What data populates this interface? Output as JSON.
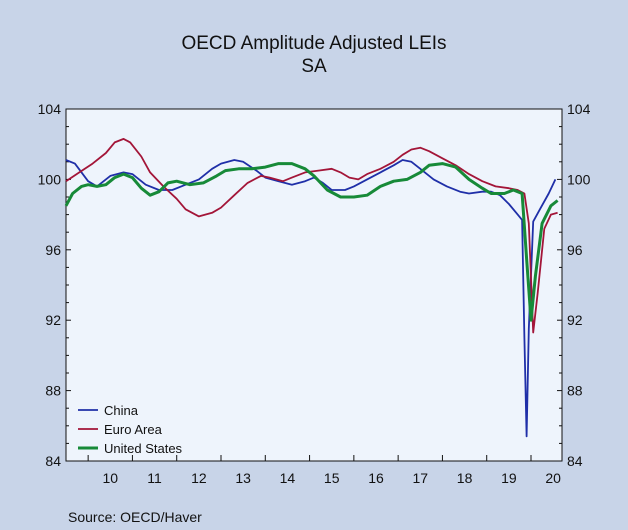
{
  "chart_data": {
    "type": "line",
    "title": "OECD Amplitude Adjusted LEIs",
    "subtitle": "SA",
    "source": "Source:  OECD/Haver",
    "x_labels": [
      "10",
      "11",
      "12",
      "13",
      "14",
      "15",
      "16",
      "17",
      "18",
      "19",
      "20"
    ],
    "xlim": [
      2009.5,
      2020.7
    ],
    "ylim": [
      84,
      104
    ],
    "yticks": [
      "84",
      "88",
      "92",
      "96",
      "100",
      "104"
    ],
    "left_axis_ticks": [
      "84",
      "88",
      "92",
      "96",
      "100",
      "104"
    ],
    "right_axis_ticks": [
      "84",
      "88",
      "92",
      "96",
      "100",
      "104"
    ],
    "legend_position": "bottom-left",
    "series": [
      {
        "name": "China",
        "color": "#1f2fa8",
        "points": [
          [
            2009.5,
            101.1
          ],
          [
            2009.7,
            100.9
          ],
          [
            2010.0,
            99.9
          ],
          [
            2010.2,
            99.6
          ],
          [
            2010.5,
            100.2
          ],
          [
            2010.8,
            100.4
          ],
          [
            2011.0,
            100.3
          ],
          [
            2011.3,
            99.7
          ],
          [
            2011.6,
            99.4
          ],
          [
            2011.9,
            99.4
          ],
          [
            2012.2,
            99.7
          ],
          [
            2012.5,
            100.0
          ],
          [
            2012.8,
            100.6
          ],
          [
            2013.0,
            100.9
          ],
          [
            2013.3,
            101.1
          ],
          [
            2013.5,
            101.0
          ],
          [
            2013.8,
            100.5
          ],
          [
            2014.0,
            100.1
          ],
          [
            2014.3,
            99.9
          ],
          [
            2014.6,
            99.7
          ],
          [
            2014.9,
            99.9
          ],
          [
            2015.1,
            100.1
          ],
          [
            2015.3,
            99.8
          ],
          [
            2015.5,
            99.4
          ],
          [
            2015.8,
            99.4
          ],
          [
            2016.0,
            99.6
          ],
          [
            2016.3,
            100.0
          ],
          [
            2016.6,
            100.4
          ],
          [
            2016.9,
            100.8
          ],
          [
            2017.1,
            101.1
          ],
          [
            2017.3,
            101.0
          ],
          [
            2017.5,
            100.6
          ],
          [
            2017.8,
            100.0
          ],
          [
            2018.1,
            99.6
          ],
          [
            2018.4,
            99.3
          ],
          [
            2018.6,
            99.2
          ],
          [
            2018.9,
            99.3
          ],
          [
            2019.1,
            99.3
          ],
          [
            2019.3,
            99.1
          ],
          [
            2019.5,
            98.6
          ],
          [
            2019.7,
            98.0
          ],
          [
            2019.8,
            97.7
          ],
          [
            2019.85,
            91.0
          ],
          [
            2019.9,
            85.4
          ],
          [
            2019.95,
            91.5
          ],
          [
            2020.05,
            97.6
          ],
          [
            2020.2,
            98.3
          ],
          [
            2020.4,
            99.2
          ],
          [
            2020.55,
            100.0
          ]
        ]
      },
      {
        "name": "Euro Area",
        "color": "#a31538",
        "points": [
          [
            2009.5,
            99.9
          ],
          [
            2009.8,
            100.4
          ],
          [
            2010.1,
            100.9
          ],
          [
            2010.4,
            101.5
          ],
          [
            2010.6,
            102.1
          ],
          [
            2010.8,
            102.3
          ],
          [
            2010.95,
            102.1
          ],
          [
            2011.2,
            101.3
          ],
          [
            2011.4,
            100.4
          ],
          [
            2011.7,
            99.6
          ],
          [
            2012.0,
            98.9
          ],
          [
            2012.2,
            98.3
          ],
          [
            2012.5,
            97.9
          ],
          [
            2012.8,
            98.1
          ],
          [
            2013.0,
            98.4
          ],
          [
            2013.3,
            99.1
          ],
          [
            2013.6,
            99.8
          ],
          [
            2013.9,
            100.2
          ],
          [
            2014.1,
            100.1
          ],
          [
            2014.4,
            99.9
          ],
          [
            2014.6,
            100.1
          ],
          [
            2014.9,
            100.4
          ],
          [
            2015.2,
            100.5
          ],
          [
            2015.5,
            100.6
          ],
          [
            2015.7,
            100.4
          ],
          [
            2015.9,
            100.1
          ],
          [
            2016.1,
            100.0
          ],
          [
            2016.3,
            100.3
          ],
          [
            2016.6,
            100.6
          ],
          [
            2016.9,
            101.0
          ],
          [
            2017.1,
            101.4
          ],
          [
            2017.3,
            101.7
          ],
          [
            2017.5,
            101.8
          ],
          [
            2017.7,
            101.6
          ],
          [
            2018.0,
            101.2
          ],
          [
            2018.3,
            100.8
          ],
          [
            2018.6,
            100.3
          ],
          [
            2018.9,
            99.9
          ],
          [
            2019.2,
            99.6
          ],
          [
            2019.5,
            99.5
          ],
          [
            2019.7,
            99.4
          ],
          [
            2019.85,
            99.2
          ],
          [
            2019.95,
            97.5
          ],
          [
            2020.05,
            91.3
          ],
          [
            2020.15,
            93.5
          ],
          [
            2020.3,
            97.2
          ],
          [
            2020.45,
            98.0
          ],
          [
            2020.6,
            98.1
          ]
        ]
      },
      {
        "name": "United States",
        "color": "#178a38",
        "points": [
          [
            2009.5,
            98.5
          ],
          [
            2009.65,
            99.2
          ],
          [
            2009.85,
            99.6
          ],
          [
            2010.0,
            99.7
          ],
          [
            2010.2,
            99.6
          ],
          [
            2010.4,
            99.7
          ],
          [
            2010.6,
            100.1
          ],
          [
            2010.8,
            100.3
          ],
          [
            2011.0,
            100.1
          ],
          [
            2011.2,
            99.5
          ],
          [
            2011.4,
            99.1
          ],
          [
            2011.6,
            99.3
          ],
          [
            2011.8,
            99.8
          ],
          [
            2012.0,
            99.9
          ],
          [
            2012.3,
            99.7
          ],
          [
            2012.6,
            99.8
          ],
          [
            2012.9,
            100.2
          ],
          [
            2013.1,
            100.5
          ],
          [
            2013.4,
            100.6
          ],
          [
            2013.7,
            100.6
          ],
          [
            2014.0,
            100.7
          ],
          [
            2014.3,
            100.9
          ],
          [
            2014.6,
            100.9
          ],
          [
            2014.9,
            100.6
          ],
          [
            2015.1,
            100.2
          ],
          [
            2015.4,
            99.4
          ],
          [
            2015.7,
            99.0
          ],
          [
            2016.0,
            99.0
          ],
          [
            2016.3,
            99.1
          ],
          [
            2016.6,
            99.6
          ],
          [
            2016.9,
            99.9
          ],
          [
            2017.2,
            100.0
          ],
          [
            2017.5,
            100.4
          ],
          [
            2017.7,
            100.8
          ],
          [
            2018.0,
            100.9
          ],
          [
            2018.3,
            100.7
          ],
          [
            2018.6,
            100.0
          ],
          [
            2018.9,
            99.5
          ],
          [
            2019.1,
            99.2
          ],
          [
            2019.4,
            99.2
          ],
          [
            2019.6,
            99.4
          ],
          [
            2019.8,
            99.2
          ],
          [
            2019.9,
            95.5
          ],
          [
            2020.0,
            92.0
          ],
          [
            2020.1,
            94.5
          ],
          [
            2020.25,
            97.5
          ],
          [
            2020.45,
            98.5
          ],
          [
            2020.6,
            98.8
          ]
        ]
      }
    ]
  }
}
